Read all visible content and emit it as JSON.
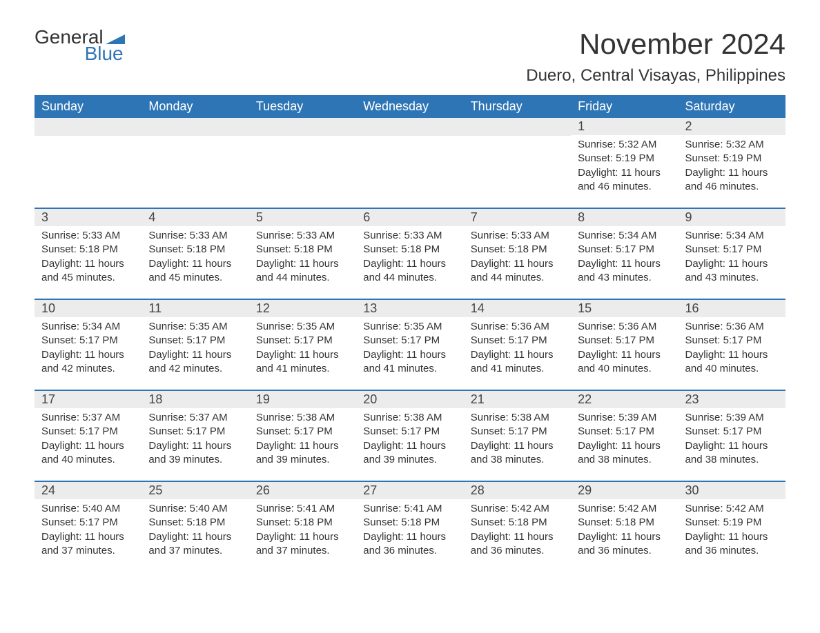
{
  "logo": {
    "text_top": "General",
    "text_bottom": "Blue",
    "triangle_color": "#2e75b6"
  },
  "header": {
    "month_title": "November 2024",
    "location": "Duero, Central Visayas, Philippines"
  },
  "colors": {
    "header_bg": "#2e75b6",
    "header_text": "#ffffff",
    "daynum_bg": "#ececec",
    "row_border": "#2e75b6",
    "body_text": "#333333",
    "background": "#ffffff"
  },
  "typography": {
    "month_title_fontsize": 42,
    "location_fontsize": 24,
    "weekday_fontsize": 18,
    "daynum_fontsize": 18,
    "body_fontsize": 15
  },
  "layout": {
    "columns": 7,
    "rows": 5,
    "first_day_column": 5
  },
  "weekdays": [
    "Sunday",
    "Monday",
    "Tuesday",
    "Wednesday",
    "Thursday",
    "Friday",
    "Saturday"
  ],
  "weeks": [
    [
      null,
      null,
      null,
      null,
      null,
      {
        "num": "1",
        "sunrise": "Sunrise: 5:32 AM",
        "sunset": "Sunset: 5:19 PM",
        "daylight": "Daylight: 11 hours and 46 minutes."
      },
      {
        "num": "2",
        "sunrise": "Sunrise: 5:32 AM",
        "sunset": "Sunset: 5:19 PM",
        "daylight": "Daylight: 11 hours and 46 minutes."
      }
    ],
    [
      {
        "num": "3",
        "sunrise": "Sunrise: 5:33 AM",
        "sunset": "Sunset: 5:18 PM",
        "daylight": "Daylight: 11 hours and 45 minutes."
      },
      {
        "num": "4",
        "sunrise": "Sunrise: 5:33 AM",
        "sunset": "Sunset: 5:18 PM",
        "daylight": "Daylight: 11 hours and 45 minutes."
      },
      {
        "num": "5",
        "sunrise": "Sunrise: 5:33 AM",
        "sunset": "Sunset: 5:18 PM",
        "daylight": "Daylight: 11 hours and 44 minutes."
      },
      {
        "num": "6",
        "sunrise": "Sunrise: 5:33 AM",
        "sunset": "Sunset: 5:18 PM",
        "daylight": "Daylight: 11 hours and 44 minutes."
      },
      {
        "num": "7",
        "sunrise": "Sunrise: 5:33 AM",
        "sunset": "Sunset: 5:18 PM",
        "daylight": "Daylight: 11 hours and 44 minutes."
      },
      {
        "num": "8",
        "sunrise": "Sunrise: 5:34 AM",
        "sunset": "Sunset: 5:17 PM",
        "daylight": "Daylight: 11 hours and 43 minutes."
      },
      {
        "num": "9",
        "sunrise": "Sunrise: 5:34 AM",
        "sunset": "Sunset: 5:17 PM",
        "daylight": "Daylight: 11 hours and 43 minutes."
      }
    ],
    [
      {
        "num": "10",
        "sunrise": "Sunrise: 5:34 AM",
        "sunset": "Sunset: 5:17 PM",
        "daylight": "Daylight: 11 hours and 42 minutes."
      },
      {
        "num": "11",
        "sunrise": "Sunrise: 5:35 AM",
        "sunset": "Sunset: 5:17 PM",
        "daylight": "Daylight: 11 hours and 42 minutes."
      },
      {
        "num": "12",
        "sunrise": "Sunrise: 5:35 AM",
        "sunset": "Sunset: 5:17 PM",
        "daylight": "Daylight: 11 hours and 41 minutes."
      },
      {
        "num": "13",
        "sunrise": "Sunrise: 5:35 AM",
        "sunset": "Sunset: 5:17 PM",
        "daylight": "Daylight: 11 hours and 41 minutes."
      },
      {
        "num": "14",
        "sunrise": "Sunrise: 5:36 AM",
        "sunset": "Sunset: 5:17 PM",
        "daylight": "Daylight: 11 hours and 41 minutes."
      },
      {
        "num": "15",
        "sunrise": "Sunrise: 5:36 AM",
        "sunset": "Sunset: 5:17 PM",
        "daylight": "Daylight: 11 hours and 40 minutes."
      },
      {
        "num": "16",
        "sunrise": "Sunrise: 5:36 AM",
        "sunset": "Sunset: 5:17 PM",
        "daylight": "Daylight: 11 hours and 40 minutes."
      }
    ],
    [
      {
        "num": "17",
        "sunrise": "Sunrise: 5:37 AM",
        "sunset": "Sunset: 5:17 PM",
        "daylight": "Daylight: 11 hours and 40 minutes."
      },
      {
        "num": "18",
        "sunrise": "Sunrise: 5:37 AM",
        "sunset": "Sunset: 5:17 PM",
        "daylight": "Daylight: 11 hours and 39 minutes."
      },
      {
        "num": "19",
        "sunrise": "Sunrise: 5:38 AM",
        "sunset": "Sunset: 5:17 PM",
        "daylight": "Daylight: 11 hours and 39 minutes."
      },
      {
        "num": "20",
        "sunrise": "Sunrise: 5:38 AM",
        "sunset": "Sunset: 5:17 PM",
        "daylight": "Daylight: 11 hours and 39 minutes."
      },
      {
        "num": "21",
        "sunrise": "Sunrise: 5:38 AM",
        "sunset": "Sunset: 5:17 PM",
        "daylight": "Daylight: 11 hours and 38 minutes."
      },
      {
        "num": "22",
        "sunrise": "Sunrise: 5:39 AM",
        "sunset": "Sunset: 5:17 PM",
        "daylight": "Daylight: 11 hours and 38 minutes."
      },
      {
        "num": "23",
        "sunrise": "Sunrise: 5:39 AM",
        "sunset": "Sunset: 5:17 PM",
        "daylight": "Daylight: 11 hours and 38 minutes."
      }
    ],
    [
      {
        "num": "24",
        "sunrise": "Sunrise: 5:40 AM",
        "sunset": "Sunset: 5:17 PM",
        "daylight": "Daylight: 11 hours and 37 minutes."
      },
      {
        "num": "25",
        "sunrise": "Sunrise: 5:40 AM",
        "sunset": "Sunset: 5:18 PM",
        "daylight": "Daylight: 11 hours and 37 minutes."
      },
      {
        "num": "26",
        "sunrise": "Sunrise: 5:41 AM",
        "sunset": "Sunset: 5:18 PM",
        "daylight": "Daylight: 11 hours and 37 minutes."
      },
      {
        "num": "27",
        "sunrise": "Sunrise: 5:41 AM",
        "sunset": "Sunset: 5:18 PM",
        "daylight": "Daylight: 11 hours and 36 minutes."
      },
      {
        "num": "28",
        "sunrise": "Sunrise: 5:42 AM",
        "sunset": "Sunset: 5:18 PM",
        "daylight": "Daylight: 11 hours and 36 minutes."
      },
      {
        "num": "29",
        "sunrise": "Sunrise: 5:42 AM",
        "sunset": "Sunset: 5:18 PM",
        "daylight": "Daylight: 11 hours and 36 minutes."
      },
      {
        "num": "30",
        "sunrise": "Sunrise: 5:42 AM",
        "sunset": "Sunset: 5:19 PM",
        "daylight": "Daylight: 11 hours and 36 minutes."
      }
    ]
  ]
}
